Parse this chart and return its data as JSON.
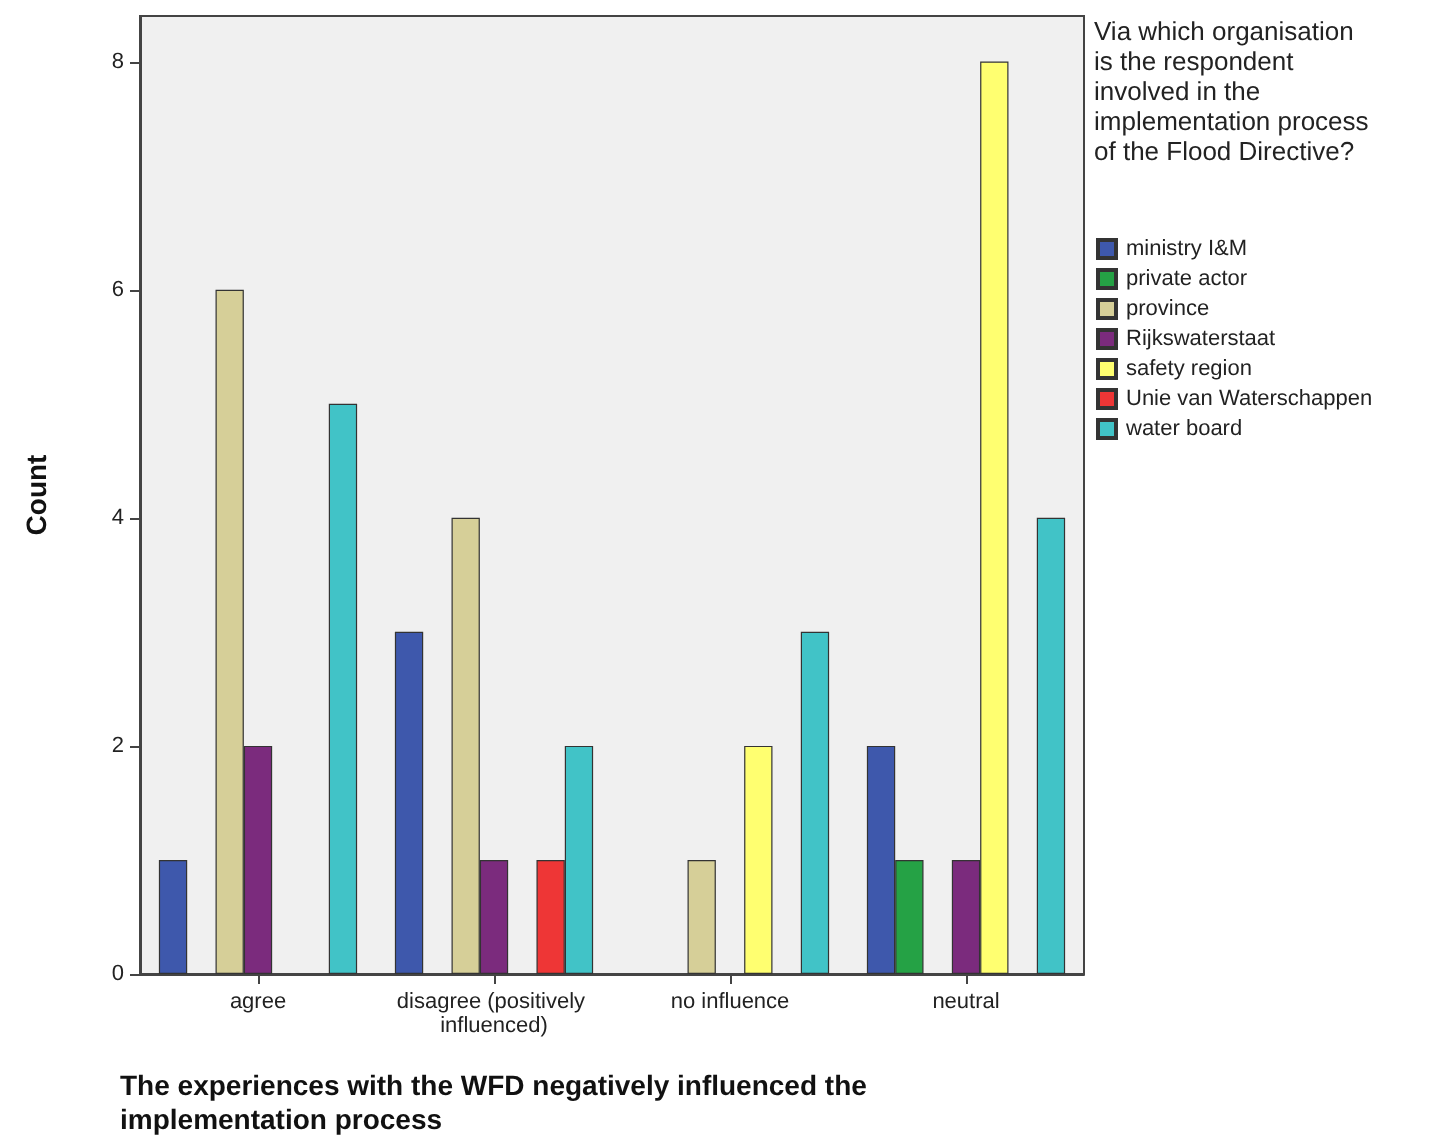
{
  "chart_data": {
    "type": "bar",
    "xlabel": "The experiences with the WFD negatively influenced the implementation process",
    "ylabel": "Count",
    "legend_title": "Via which organisation is the respondent involved in the implementation process of the Flood Directive?",
    "categories": [
      "agree",
      "disagree (positively influenced)",
      "no influence",
      "neutral"
    ],
    "series": [
      {
        "name": "ministry I&M",
        "color": "#3e58ac",
        "values": [
          1,
          3,
          0,
          2
        ]
      },
      {
        "name": "private actor",
        "color": "#25a245",
        "values": [
          0,
          0,
          0,
          1
        ]
      },
      {
        "name": "province",
        "color": "#d6cf98",
        "values": [
          6,
          4,
          1,
          0
        ]
      },
      {
        "name": "Rijkswaterstaat",
        "color": "#7b2b7d",
        "values": [
          2,
          1,
          0,
          1
        ]
      },
      {
        "name": "safety region",
        "color": "#ffff70",
        "values": [
          0,
          0,
          2,
          8
        ]
      },
      {
        "name": "Unie van Waterschappen",
        "color": "#ee3636",
        "values": [
          0,
          1,
          0,
          0
        ]
      },
      {
        "name": "water board",
        "color": "#41c3c7",
        "values": [
          5,
          2,
          3,
          4
        ]
      }
    ],
    "ylim": [
      0,
      8.4
    ],
    "yticks": [
      0,
      2,
      4,
      6,
      8
    ],
    "grid": false,
    "legend": "right"
  }
}
